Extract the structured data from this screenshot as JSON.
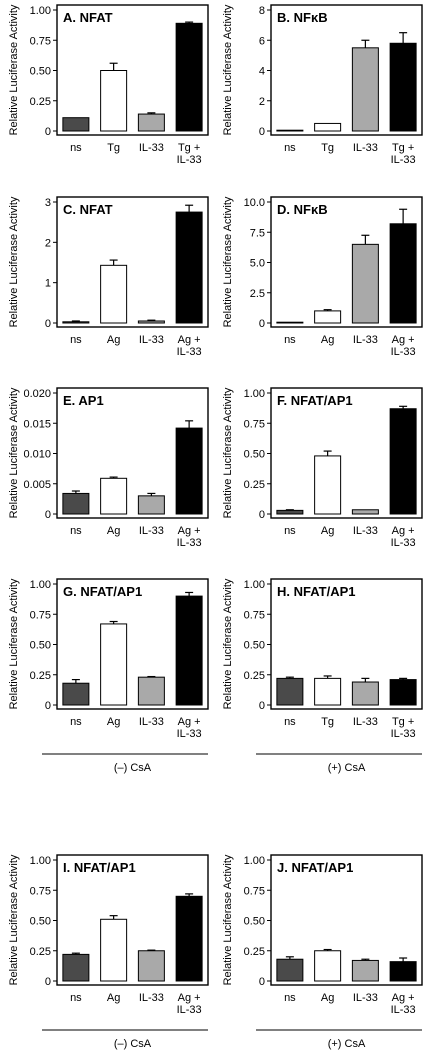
{
  "ylabel": "Relative Luciferase Activity",
  "colors": {
    "ns": "#4a4a4a",
    "stim": "#ffffff",
    "il33": "#a9a9a9",
    "combo": "#000000",
    "stroke": "#000000"
  },
  "chart_data": [
    {
      "panel": "A",
      "title": "A. NFAT",
      "type": "bar",
      "ylim": [
        0,
        1.0
      ],
      "yticks": [
        "0",
        "0.25",
        "0.50",
        "0.75",
        "1.00"
      ],
      "ytick_values": [
        0,
        0.25,
        0.5,
        0.75,
        1.0
      ],
      "categories": [
        [
          "ns"
        ],
        [
          "Tg"
        ],
        [
          "IL-33"
        ],
        [
          "Tg +",
          "IL-33"
        ]
      ],
      "values": [
        0.11,
        0.5,
        0.14,
        0.89
      ],
      "errors": [
        0,
        0.06,
        0.01,
        0.01
      ],
      "footer": ""
    },
    {
      "panel": "B",
      "title": "B. NFκB",
      "type": "bar",
      "ylim": [
        0,
        8
      ],
      "yticks": [
        "0",
        "2",
        "4",
        "6",
        "8"
      ],
      "ytick_values": [
        0,
        2,
        4,
        6,
        8
      ],
      "categories": [
        [
          "ns"
        ],
        [
          "Tg"
        ],
        [
          "IL-33"
        ],
        [
          "Tg +",
          "IL-33"
        ]
      ],
      "values": [
        0.05,
        0.5,
        5.5,
        5.8
      ],
      "errors": [
        0,
        0,
        0.5,
        0.7
      ],
      "footer": ""
    },
    {
      "panel": "C",
      "title": "C. NFAT",
      "type": "bar",
      "ylim": [
        0,
        3
      ],
      "yticks": [
        "0",
        "1",
        "2",
        "3"
      ],
      "ytick_values": [
        0,
        1,
        2,
        3
      ],
      "categories": [
        [
          "ns"
        ],
        [
          "Ag"
        ],
        [
          "IL-33"
        ],
        [
          "Ag +",
          "IL-33"
        ]
      ],
      "values": [
        0.03,
        1.43,
        0.05,
        2.75
      ],
      "errors": [
        0.02,
        0.13,
        0.02,
        0.17
      ],
      "footer": ""
    },
    {
      "panel": "D",
      "title": "D. NFκB",
      "type": "bar",
      "ylim": [
        0,
        10
      ],
      "yticks": [
        "0",
        "2.5",
        "5.0",
        "7.5",
        "10.0"
      ],
      "ytick_values": [
        0,
        2.5,
        5,
        7.5,
        10
      ],
      "categories": [
        [
          "ns"
        ],
        [
          "Ag"
        ],
        [
          "IL-33"
        ],
        [
          "Ag +",
          "IL-33"
        ]
      ],
      "values": [
        0.05,
        1.0,
        6.5,
        8.2
      ],
      "errors": [
        0,
        0.1,
        0.75,
        1.2
      ],
      "footer": ""
    },
    {
      "panel": "E",
      "title": "E. AP1",
      "type": "bar",
      "ylim": [
        0,
        0.02
      ],
      "yticks": [
        "0",
        "0.005",
        "0.010",
        "0.015",
        "0.020"
      ],
      "ytick_values": [
        0,
        0.005,
        0.01,
        0.015,
        0.02
      ],
      "categories": [
        [
          "ns"
        ],
        [
          "Ag"
        ],
        [
          "IL-33"
        ],
        [
          "Ag +",
          "IL-33"
        ]
      ],
      "values": [
        0.0034,
        0.0059,
        0.003,
        0.0142
      ],
      "errors": [
        0.0004,
        0.0002,
        0.0004,
        0.0012
      ],
      "footer": ""
    },
    {
      "panel": "F",
      "title": "F. NFAT/AP1",
      "type": "bar",
      "ylim": [
        0,
        1.0
      ],
      "yticks": [
        "0",
        "0.25",
        "0.50",
        "0.75",
        "1.00"
      ],
      "ytick_values": [
        0,
        0.25,
        0.5,
        0.75,
        1.0
      ],
      "categories": [
        [
          "ns"
        ],
        [
          "Ag"
        ],
        [
          "IL-33"
        ],
        [
          "Ag +",
          "IL-33"
        ]
      ],
      "values": [
        0.03,
        0.48,
        0.035,
        0.87
      ],
      "errors": [
        0.005,
        0.04,
        0,
        0.02
      ],
      "footer": ""
    },
    {
      "panel": "G",
      "title": "G. NFAT/AP1",
      "type": "bar",
      "ylim": [
        0,
        1.0
      ],
      "yticks": [
        "0",
        "0.25",
        "0.50",
        "0.75",
        "1.00"
      ],
      "ytick_values": [
        0,
        0.25,
        0.5,
        0.75,
        1.0
      ],
      "categories": [
        [
          "ns"
        ],
        [
          "Ag"
        ],
        [
          "IL-33"
        ],
        [
          "Ag +",
          "IL-33"
        ]
      ],
      "values": [
        0.18,
        0.67,
        0.23,
        0.9
      ],
      "errors": [
        0.03,
        0.02,
        0.005,
        0.03
      ],
      "footer": "(–) CsA"
    },
    {
      "panel": "H",
      "title": "H. NFAT/AP1",
      "type": "bar",
      "ylim": [
        0,
        1.0
      ],
      "yticks": [
        "0",
        "0.25",
        "0.50",
        "0.75",
        "1.00"
      ],
      "ytick_values": [
        0,
        0.25,
        0.5,
        0.75,
        1.0
      ],
      "categories": [
        [
          "ns"
        ],
        [
          "Tg"
        ],
        [
          "IL-33"
        ],
        [
          "Tg +",
          "IL-33"
        ]
      ],
      "values": [
        0.22,
        0.22,
        0.19,
        0.21
      ],
      "errors": [
        0.01,
        0.02,
        0.03,
        0.01
      ],
      "footer": "(+) CsA"
    },
    {
      "panel": "I",
      "title": "I. NFAT/AP1",
      "type": "bar",
      "ylim": [
        0,
        1.0
      ],
      "yticks": [
        "0",
        "0.25",
        "0.50",
        "0.75",
        "1.00"
      ],
      "ytick_values": [
        0,
        0.25,
        0.5,
        0.75,
        1.0
      ],
      "categories": [
        [
          "ns"
        ],
        [
          "Ag"
        ],
        [
          "IL-33"
        ],
        [
          "Ag +",
          "IL-33"
        ]
      ],
      "values": [
        0.22,
        0.51,
        0.25,
        0.7
      ],
      "errors": [
        0.01,
        0.03,
        0.005,
        0.02
      ],
      "footer": "(–) CsA"
    },
    {
      "panel": "J",
      "title": "J. NFAT/AP1",
      "type": "bar",
      "ylim": [
        0,
        1.0
      ],
      "yticks": [
        "0",
        "0.25",
        "0.50",
        "0.75",
        "1.00"
      ],
      "ytick_values": [
        0,
        0.25,
        0.5,
        0.75,
        1.0
      ],
      "categories": [
        [
          "ns"
        ],
        [
          "Ag"
        ],
        [
          "IL-33"
        ],
        [
          "Ag +",
          "IL-33"
        ]
      ],
      "values": [
        0.18,
        0.25,
        0.17,
        0.16
      ],
      "errors": [
        0.02,
        0.01,
        0.01,
        0.03
      ],
      "footer": "(+) CsA"
    }
  ]
}
